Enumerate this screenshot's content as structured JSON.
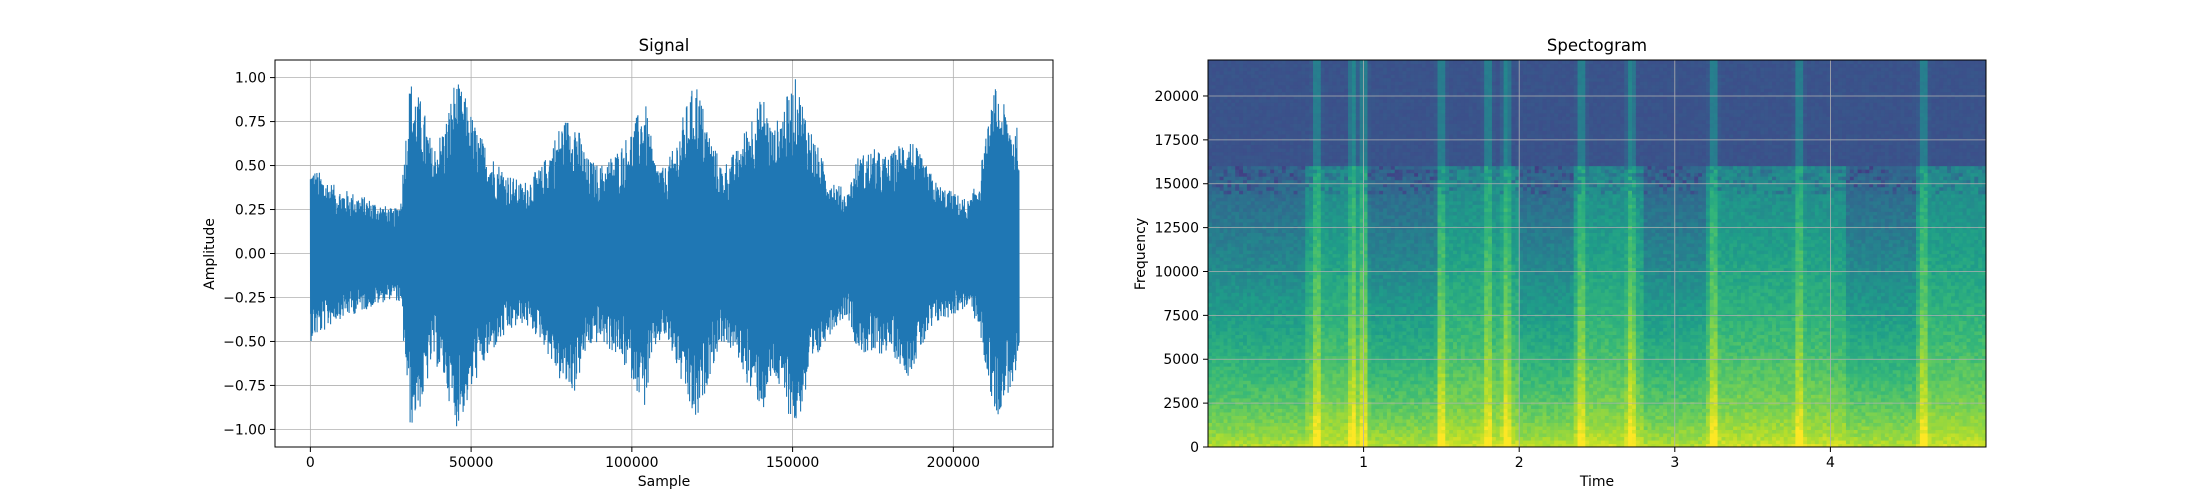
{
  "chart_data": [
    {
      "type": "line",
      "title": "Signal",
      "xlabel": "Sample",
      "ylabel": "Amplitude",
      "xlim": [
        -11000,
        231000
      ],
      "ylim": [
        -1.1,
        1.1
      ],
      "grid": true,
      "color": "#1f77b4",
      "xticks": [
        0,
        50000,
        100000,
        150000,
        200000
      ],
      "xtick_labels": [
        "0",
        "50000",
        "100000",
        "150000",
        "200000"
      ],
      "yticks": [
        1.0,
        0.75,
        0.5,
        0.25,
        0.0,
        -0.25,
        -0.5,
        -0.75,
        -1.0
      ],
      "ytick_labels": [
        "1.00",
        "0.75",
        "0.50",
        "0.25",
        "0.00",
        "−0.25",
        "−0.50",
        "−0.75",
        "−1.00"
      ],
      "n_samples": 220500,
      "envelope_samples": [
        0,
        4000,
        8000,
        13000,
        20000,
        26000,
        28000,
        31000,
        35000,
        38000,
        42000,
        45000,
        48000,
        52000,
        57000,
        62000,
        66000,
        72000,
        78000,
        82000,
        86000,
        90000,
        96000,
        100000,
        104000,
        107000,
        110000,
        113000,
        117000,
        120000,
        124000,
        128000,
        133000,
        137000,
        141000,
        144000,
        147000,
        151000,
        156000,
        160000,
        164000,
        167000,
        170000,
        175000,
        180000,
        186000,
        190000,
        195000,
        200000,
        205000,
        208000,
        213000,
        217000,
        220500
      ],
      "envelope_amplitude": [
        0.5,
        0.45,
        0.38,
        0.35,
        0.3,
        0.25,
        0.3,
        1.0,
        0.85,
        0.6,
        0.75,
        1.0,
        0.9,
        0.7,
        0.55,
        0.45,
        0.4,
        0.5,
        0.75,
        0.8,
        0.55,
        0.5,
        0.6,
        0.72,
        0.88,
        0.55,
        0.48,
        0.6,
        0.85,
        1.0,
        0.7,
        0.5,
        0.6,
        0.8,
        0.9,
        0.7,
        0.85,
        1.0,
        0.7,
        0.5,
        0.4,
        0.35,
        0.55,
        0.6,
        0.55,
        0.7,
        0.55,
        0.4,
        0.35,
        0.3,
        0.45,
        0.95,
        0.8,
        0.7
      ]
    },
    {
      "type": "heatmap",
      "title": "Spectogram",
      "xlabel": "Time",
      "ylabel": "Frequency",
      "xlim": [
        0,
        5.0
      ],
      "ylim": [
        0,
        22050
      ],
      "grid": true,
      "colormap": "viridis",
      "xticks": [
        1,
        2,
        3,
        4
      ],
      "xtick_labels": [
        "1",
        "2",
        "3",
        "4"
      ],
      "yticks": [
        0,
        2500,
        5000,
        7500,
        10000,
        12500,
        15000,
        17500,
        20000
      ],
      "ytick_labels": [
        "0",
        "2500",
        "5000",
        "7500",
        "10000",
        "12500",
        "15000",
        "17500",
        "20000"
      ],
      "cutoff_frequency": 16000,
      "burst_times": [
        0.7,
        0.93,
        1.0,
        1.5,
        1.8,
        1.92,
        2.4,
        2.72,
        3.25,
        3.8,
        4.6
      ],
      "quiet_intervals": [
        [
          0.0,
          0.62
        ],
        [
          1.03,
          1.48
        ],
        [
          2.0,
          2.35
        ],
        [
          2.8,
          3.2
        ],
        [
          4.1,
          4.55
        ]
      ]
    }
  ]
}
